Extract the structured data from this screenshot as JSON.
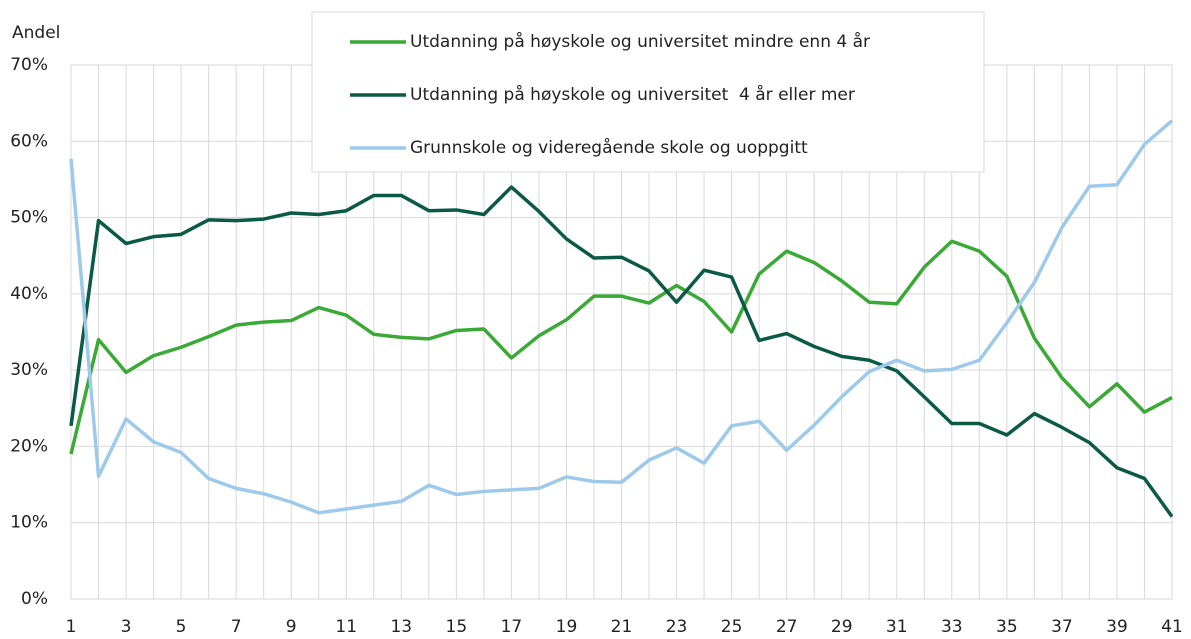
{
  "chart_data": {
    "type": "line",
    "y_label": "Andel",
    "x": [
      1,
      2,
      3,
      4,
      5,
      6,
      7,
      8,
      9,
      10,
      11,
      12,
      13,
      14,
      15,
      16,
      17,
      18,
      19,
      20,
      21,
      22,
      23,
      24,
      25,
      26,
      27,
      28,
      29,
      30,
      31,
      32,
      33,
      34,
      35,
      36,
      37,
      38,
      39,
      40,
      41
    ],
    "xlim": [
      1,
      41
    ],
    "xticks": [
      1,
      3,
      5,
      7,
      9,
      11,
      13,
      15,
      17,
      19,
      21,
      23,
      25,
      27,
      29,
      31,
      33,
      35,
      37,
      39,
      41
    ],
    "ylim": [
      0,
      70
    ],
    "yticks": [
      {
        "value": 0,
        "label": "0%"
      },
      {
        "value": 10,
        "label": "10%"
      },
      {
        "value": 20,
        "label": "20%"
      },
      {
        "value": 30,
        "label": "30%"
      },
      {
        "value": 40,
        "label": "40%"
      },
      {
        "value": 50,
        "label": "50%"
      },
      {
        "value": 60,
        "label": "60%"
      },
      {
        "value": 70,
        "label": "70%"
      }
    ],
    "grid": true,
    "legend": "top",
    "series": [
      {
        "name": "Utdanning på høyskole og universitet mindre enn 4 år",
        "color": "#3aa935",
        "values": [
          19,
          34,
          29.7,
          31.9,
          33,
          34.4,
          35.9,
          36.3,
          36.5,
          38.2,
          37.2,
          34.7,
          34.3,
          34.1,
          35.2,
          35.4,
          31.6,
          34.5,
          36.6,
          39.7,
          39.7,
          38.8,
          41.1,
          39,
          35,
          42.6,
          45.6,
          44.1,
          41.7,
          38.9,
          38.7,
          43.5,
          46.9,
          45.6,
          42.3,
          34.2,
          29,
          25.2,
          28.2,
          24.5,
          26.4
        ]
      },
      {
        "name": "Utdanning på høyskole og universitet  4 år eller mer",
        "color": "#0b5a45",
        "values": [
          22.7,
          49.6,
          46.6,
          47.5,
          47.8,
          49.7,
          49.6,
          49.8,
          50.6,
          50.4,
          50.9,
          52.9,
          52.9,
          50.9,
          51,
          50.4,
          54,
          50.8,
          47.2,
          44.7,
          44.8,
          43,
          38.9,
          43.1,
          42.2,
          33.9,
          34.8,
          33.1,
          31.8,
          31.3,
          29.9,
          26.5,
          23,
          23,
          21.5,
          24.3,
          22.5,
          20.5,
          17.2,
          15.8,
          10.8
        ]
      },
      {
        "name": "Grunnskole og videregående skole og uoppgitt",
        "color": "#9dc9ea",
        "values": [
          57.7,
          16.1,
          23.6,
          20.6,
          19.2,
          15.8,
          14.5,
          13.8,
          12.7,
          11.3,
          11.8,
          12.3,
          12.8,
          14.9,
          13.7,
          14.1,
          14.3,
          14.5,
          16,
          15.4,
          15.3,
          18.2,
          19.8,
          17.8,
          22.7,
          23.3,
          19.5,
          22.8,
          26.5,
          29.8,
          31.3,
          29.9,
          30.1,
          31.3,
          36.2,
          41.5,
          48.7,
          54.1,
          54.3,
          59.6,
          62.7
        ]
      }
    ]
  }
}
